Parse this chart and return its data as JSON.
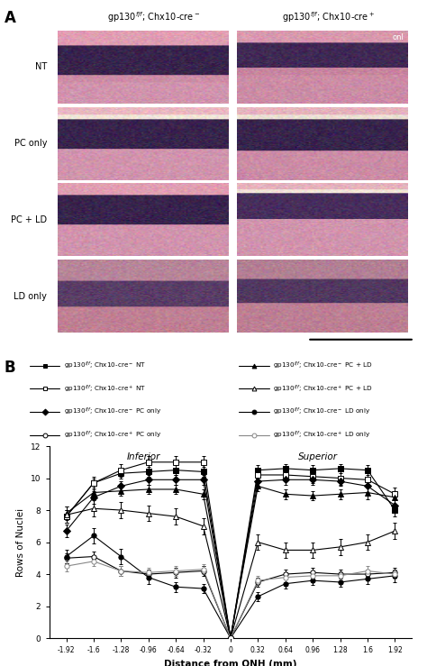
{
  "x_positions": [
    -1.92,
    -1.6,
    -1.28,
    -0.96,
    -0.64,
    -0.32,
    0,
    0.32,
    0.64,
    0.96,
    1.28,
    1.6,
    1.92
  ],
  "series": {
    "cre_neg_NT": {
      "marker": "s",
      "filled": true,
      "color": "black",
      "y": [
        7.6,
        9.7,
        10.3,
        10.4,
        10.5,
        10.4,
        0,
        10.5,
        10.6,
        10.5,
        10.6,
        10.5,
        8.0
      ],
      "yerr": [
        0.4,
        0.3,
        0.3,
        0.3,
        0.3,
        0.3,
        0,
        0.3,
        0.3,
        0.3,
        0.3,
        0.3,
        0.4
      ]
    },
    "cre_pos_NT": {
      "marker": "s",
      "filled": false,
      "color": "black",
      "y": [
        7.6,
        9.7,
        10.5,
        11.0,
        11.0,
        11.0,
        0,
        10.2,
        10.2,
        10.1,
        10.0,
        9.9,
        9.0
      ],
      "yerr": [
        0.4,
        0.4,
        0.4,
        0.4,
        0.4,
        0.4,
        0,
        0.4,
        0.4,
        0.4,
        0.4,
        0.4,
        0.4
      ]
    },
    "cre_neg_PC": {
      "marker": "D",
      "filled": true,
      "color": "black",
      "y": [
        6.7,
        8.8,
        9.5,
        9.9,
        9.9,
        9.9,
        0,
        9.8,
        9.9,
        9.9,
        9.8,
        9.5,
        8.3
      ],
      "yerr": [
        0.4,
        0.4,
        0.3,
        0.3,
        0.3,
        0.3,
        0,
        0.3,
        0.3,
        0.3,
        0.3,
        0.4,
        0.4
      ]
    },
    "cre_pos_PC": {
      "marker": "o",
      "filled": false,
      "color": "black",
      "y": [
        5.0,
        5.1,
        4.2,
        4.0,
        4.1,
        4.2,
        0,
        3.5,
        4.0,
        4.1,
        4.0,
        4.0,
        4.1
      ],
      "yerr": [
        0.3,
        0.3,
        0.3,
        0.3,
        0.3,
        0.3,
        0,
        0.3,
        0.3,
        0.3,
        0.3,
        0.3,
        0.3
      ]
    },
    "cre_neg_PCLD": {
      "marker": "^",
      "filled": true,
      "color": "black",
      "y": [
        7.8,
        9.1,
        9.2,
        9.3,
        9.3,
        9.0,
        0,
        9.5,
        9.0,
        8.9,
        9.0,
        9.1,
        8.8
      ],
      "yerr": [
        0.4,
        0.4,
        0.3,
        0.3,
        0.3,
        0.3,
        0,
        0.3,
        0.3,
        0.3,
        0.3,
        0.4,
        0.4
      ]
    },
    "cre_pos_PCLD": {
      "marker": "^",
      "filled": false,
      "color": "black",
      "y": [
        7.7,
        8.1,
        8.0,
        7.8,
        7.6,
        7.0,
        0,
        6.0,
        5.5,
        5.5,
        5.7,
        6.0,
        6.7
      ],
      "yerr": [
        0.5,
        0.5,
        0.5,
        0.5,
        0.5,
        0.5,
        0,
        0.5,
        0.5,
        0.5,
        0.5,
        0.5,
        0.5
      ]
    },
    "cre_neg_LD": {
      "marker": "o",
      "filled": true,
      "color": "black",
      "y": [
        5.1,
        6.4,
        5.1,
        3.8,
        3.2,
        3.1,
        0,
        2.6,
        3.4,
        3.6,
        3.5,
        3.7,
        3.9
      ],
      "yerr": [
        0.4,
        0.5,
        0.5,
        0.4,
        0.3,
        0.3,
        0,
        0.3,
        0.3,
        0.3,
        0.3,
        0.3,
        0.4
      ]
    },
    "cre_pos_LD": {
      "marker": "o",
      "filled": false,
      "color": "#888888",
      "y": [
        4.5,
        4.8,
        4.2,
        4.1,
        4.2,
        4.3,
        0,
        3.6,
        3.8,
        3.9,
        3.9,
        4.2,
        4.0
      ],
      "yerr": [
        0.3,
        0.3,
        0.3,
        0.3,
        0.3,
        0.3,
        0,
        0.3,
        0.3,
        0.3,
        0.3,
        0.3,
        0.3
      ]
    }
  },
  "legend_left": [
    {
      "key": "cre_neg_NT",
      "label": "gp130$^{f/f}$; Chx10-cre$^-$ NT"
    },
    {
      "key": "cre_pos_NT",
      "label": "gp130$^{f/f}$; Chx10-cre$^+$ NT"
    },
    {
      "key": "cre_neg_PC",
      "label": "gp130$^{f/f}$; Chx10-cre$^-$ PC only"
    },
    {
      "key": "cre_pos_PC",
      "label": "gp130$^{f/f}$; Chx10-cre$^+$ PC only"
    }
  ],
  "legend_right": [
    {
      "key": "cre_neg_PCLD",
      "label": "gp130$^{f/f}$; Chx10-cre$^-$ PC + LD"
    },
    {
      "key": "cre_pos_PCLD",
      "label": "gp130$^{f/f}$; Chx10-cre$^+$ PC + LD"
    },
    {
      "key": "cre_neg_LD",
      "label": "gp130$^{f/f}$; Chx10-cre$^-$ LD only"
    },
    {
      "key": "cre_pos_LD",
      "label": "gp130$^{f/f}$; Chx10-cre$^+$ LD only"
    }
  ],
  "xlabel": "Distance from ONH (mm)",
  "ylabel": "Rows of Nuclei",
  "ylim": [
    0,
    12
  ],
  "yticks": [
    0,
    2,
    4,
    6,
    8,
    10,
    12
  ],
  "col1_title": "gp130$^{f/f}$; Chx10-cre$^-$",
  "col2_title": "gp130$^{f/f}$; Chx10-cre$^+$",
  "row_labels": [
    "NT",
    "PC only",
    "PC + LD",
    "LD only"
  ],
  "background_color": "#ffffff"
}
